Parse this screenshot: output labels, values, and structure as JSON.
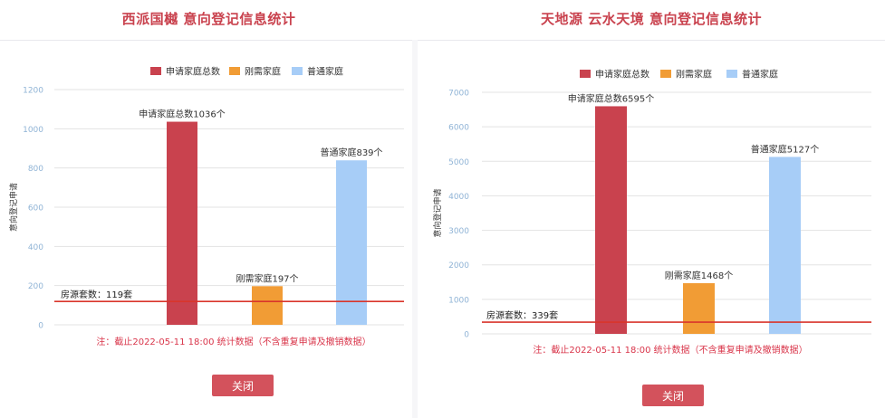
{
  "colors": {
    "title": "#c9424e",
    "total": "#c9424e",
    "rigid": "#f19c35",
    "normal": "#a7cdf7",
    "refline": "#d9352b",
    "note": "#d9354a",
    "button": "#d3525c",
    "grid": "#e3e3e3",
    "tick": "#90b4d6",
    "label": "#333333"
  },
  "panels": [
    {
      "title": "西派国樾 意向登记信息统计",
      "close_label": "关闭",
      "chart_data": {
        "type": "bar",
        "legend": [
          "申请家庭总数",
          "刚需家庭",
          "普通家庭"
        ],
        "legend_position": "top-center",
        "ylabel": "意向登记申请",
        "ylim": [
          0,
          1200
        ],
        "yticks": [
          "0",
          "200",
          "400",
          "600",
          "800",
          "1000",
          "1200"
        ],
        "ytick_values": [
          0,
          200,
          400,
          600,
          800,
          1000,
          1200
        ],
        "grid": true,
        "values": [
          1036,
          197,
          839
        ],
        "data_labels": [
          "申请家庭总数1036个",
          "刚需家庭197个",
          "普通家庭839个"
        ],
        "reference": {
          "value": 119,
          "label": "房源套数：119套"
        },
        "note": "注：截止2022-05-11 18:00 统计数据（不含重复申请及撤销数据）"
      }
    },
    {
      "title": "天地源 云水天境 意向登记信息统计",
      "close_label": "关闭",
      "chart_data": {
        "type": "bar",
        "legend": [
          "申请家庭总数",
          "刚需家庭",
          "普通家庭"
        ],
        "legend_position": "top-center",
        "ylabel": "意向登记申请",
        "ylim": [
          0,
          7000
        ],
        "yticks": [
          "0",
          "1000",
          "2000",
          "3000",
          "4000",
          "5000",
          "6000",
          "7000"
        ],
        "ytick_values": [
          0,
          1000,
          2000,
          3000,
          4000,
          5000,
          6000,
          7000
        ],
        "grid": true,
        "values": [
          6595,
          1468,
          5127
        ],
        "data_labels": [
          "申请家庭总数6595个",
          "刚需家庭1468个",
          "普通家庭5127个"
        ],
        "reference": {
          "value": 339,
          "label": "房源套数：339套"
        },
        "note": "注：截止2022-05-11 18:00 统计数据（不含重复申请及撤销数据）"
      }
    }
  ]
}
